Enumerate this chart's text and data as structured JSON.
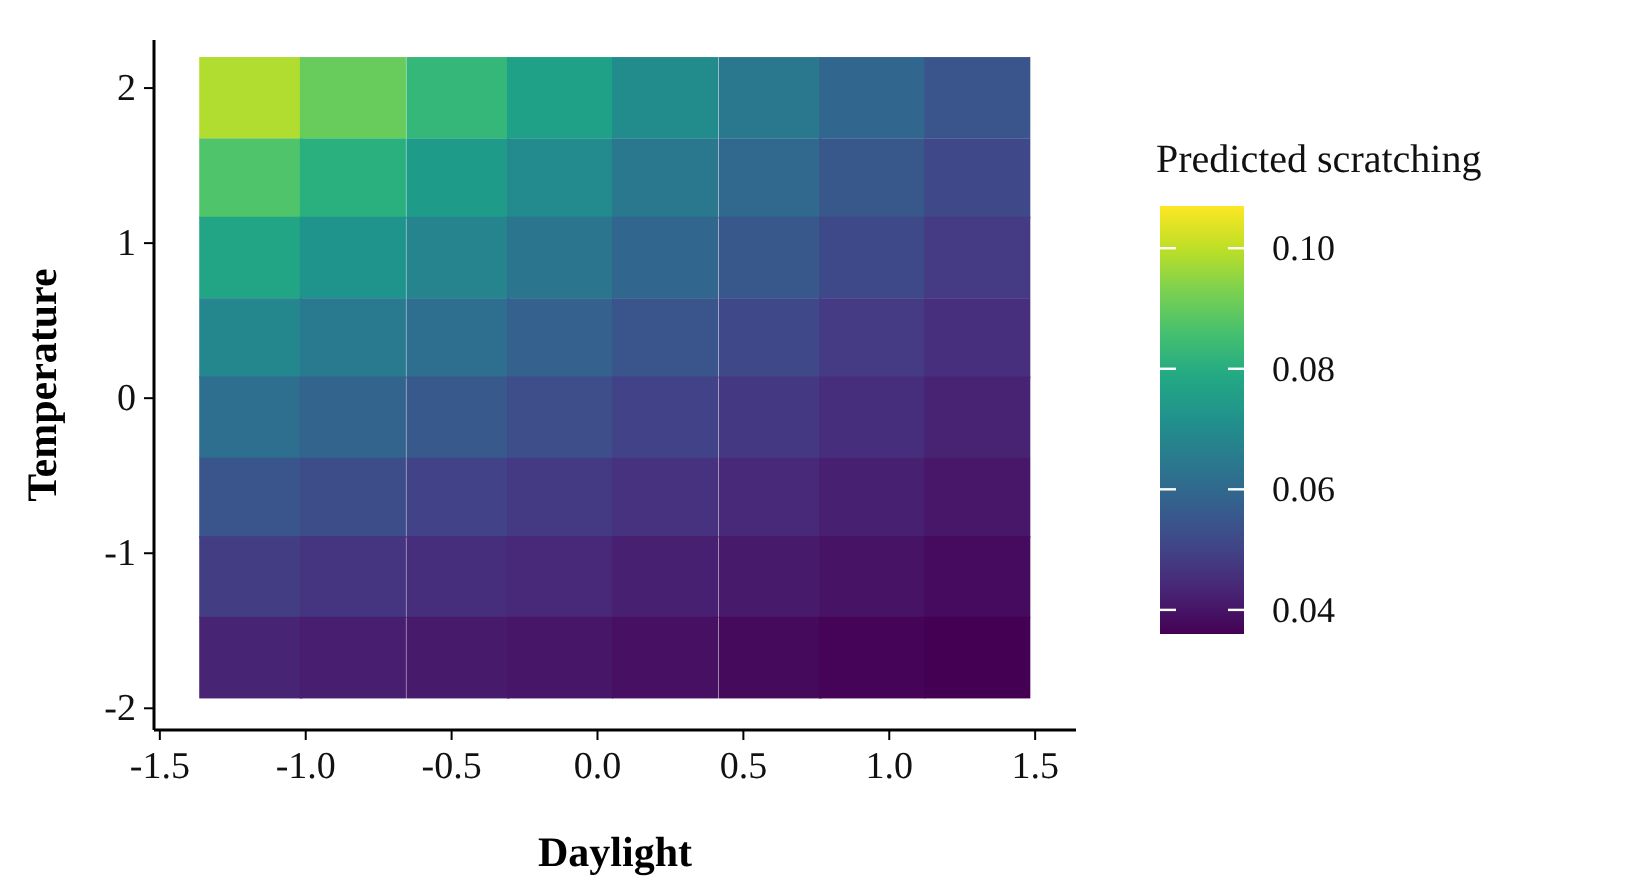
{
  "chart_data": {
    "type": "heatmap",
    "xlabel": "Daylight",
    "ylabel": "Temperature",
    "clabel": "Predicted scratching",
    "xlim": [
      -1.52,
      1.64
    ],
    "xticks": [
      {
        "value": -1.5,
        "label": "-1.5"
      },
      {
        "value": -1,
        "label": "-1.0"
      },
      {
        "value": -0.5,
        "label": "-0.5"
      },
      {
        "value": 0,
        "label": "0.0"
      },
      {
        "value": 0.5,
        "label": "0.5"
      },
      {
        "value": 1,
        "label": "1.0"
      },
      {
        "value": 1.5,
        "label": "1.5"
      }
    ],
    "ylim": [
      -2.14,
      2.31
    ],
    "yticks": [
      -2,
      -1,
      0,
      1,
      2
    ],
    "clim": [
      0.036,
      0.107
    ],
    "cticks": [
      {
        "value": 0.04,
        "label": "0.04"
      },
      {
        "value": 0.06,
        "label": "0.06"
      },
      {
        "value": 0.08,
        "label": "0.08"
      },
      {
        "value": 0.1,
        "label": "0.10"
      }
    ],
    "x": [
      -1.19,
      -0.84,
      -0.48,
      -0.13,
      0.23,
      0.59,
      0.94,
      1.3
    ],
    "y": [
      1.94,
      1.42,
      0.91,
      0.39,
      -0.12,
      -0.64,
      -1.15,
      -1.67
    ],
    "cells": [
      [
        0.0985,
        0.0906,
        0.0832,
        0.0765,
        0.0703,
        0.0645,
        0.0594,
        0.0545
      ],
      [
        0.0874,
        0.0811,
        0.0751,
        0.0697,
        0.0645,
        0.0597,
        0.0554,
        0.0513
      ],
      [
        0.0778,
        0.0727,
        0.0679,
        0.0636,
        0.0593,
        0.0554,
        0.0518,
        0.0484
      ],
      [
        0.069,
        0.0651,
        0.0613,
        0.0579,
        0.0544,
        0.0513,
        0.0483,
        0.0455
      ],
      [
        0.0615,
        0.0585,
        0.0555,
        0.0528,
        0.0501,
        0.0476,
        0.0452,
        0.0429
      ],
      [
        0.0546,
        0.0524,
        0.0501,
        0.048,
        0.046,
        0.044,
        0.0422,
        0.0404
      ],
      [
        0.0486,
        0.0469,
        0.0453,
        0.0438,
        0.0423,
        0.0408,
        0.0394,
        0.038
      ],
      [
        0.0432,
        0.0421,
        0.0409,
        0.0399,
        0.0388,
        0.0378,
        0.0368,
        0.036
      ]
    ]
  }
}
